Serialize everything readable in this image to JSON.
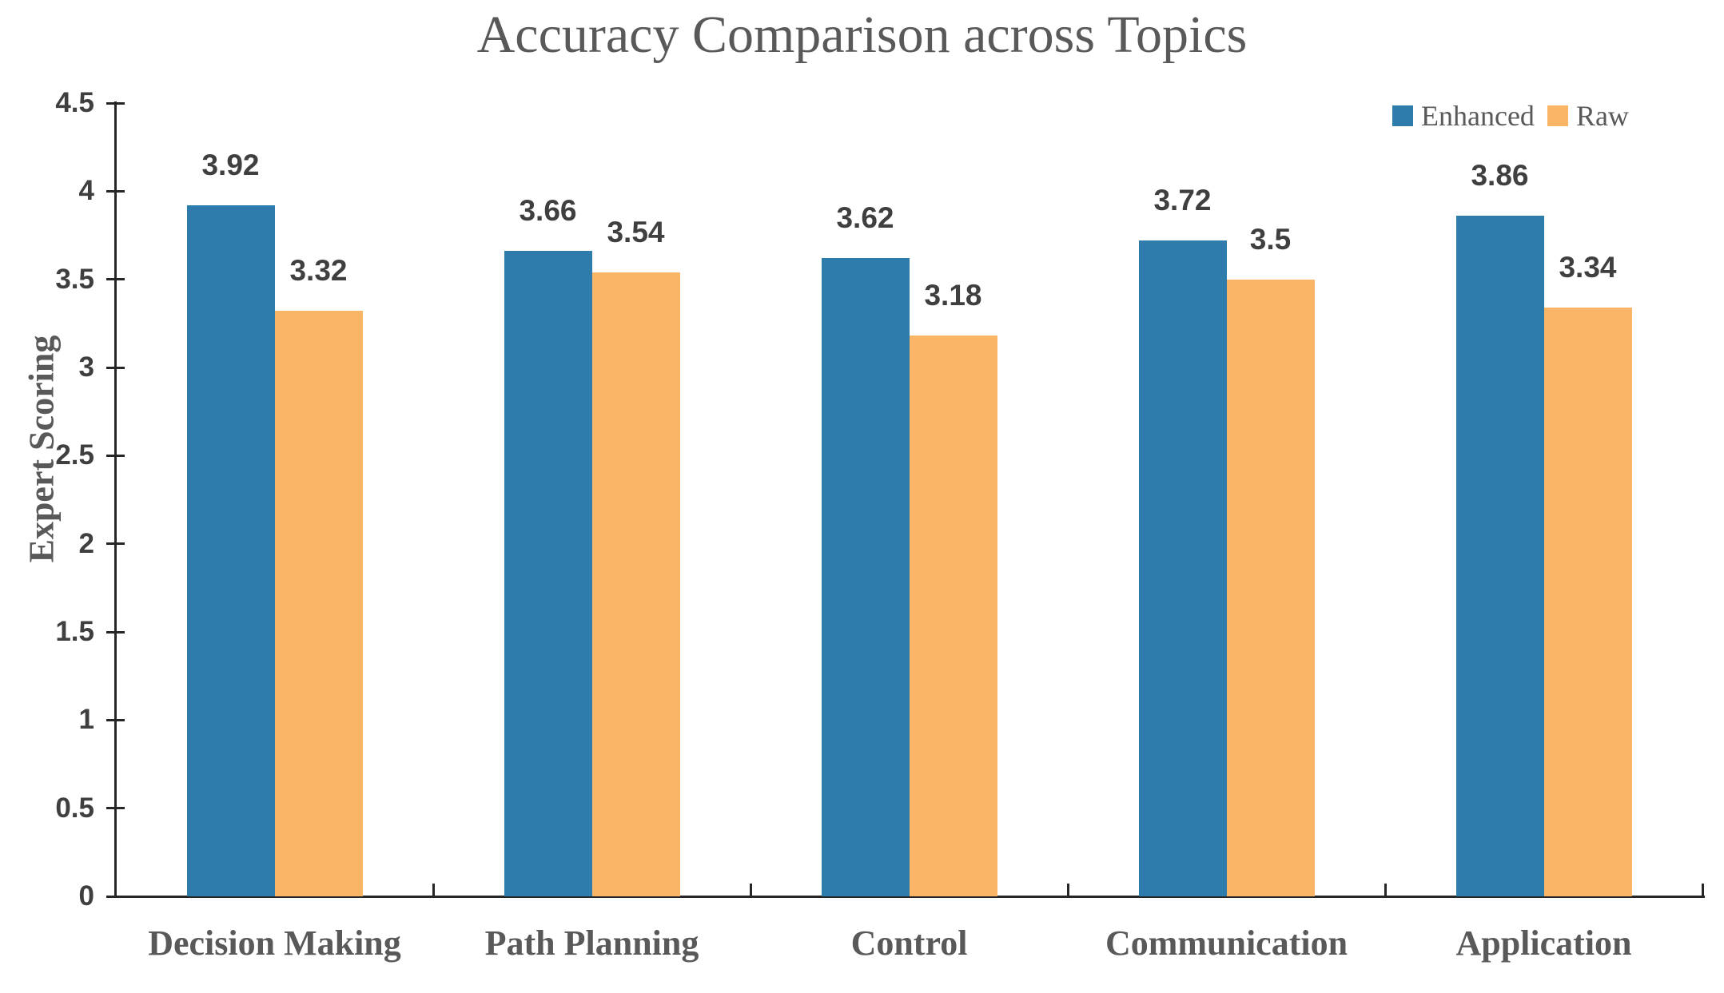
{
  "chart_data": {
    "type": "bar",
    "title": "Accuracy Comparison across Topics",
    "ylabel": "Expert Scoring",
    "xlabel": "",
    "categories": [
      "Decision Making",
      "Path Planning",
      "Control",
      "Communication",
      "Application"
    ],
    "series": [
      {
        "name": "Enhanced",
        "color": "#2D7CAC",
        "values": [
          3.92,
          3.66,
          3.62,
          3.72,
          3.86
        ]
      },
      {
        "name": "Raw",
        "color": "#FBB567",
        "values": [
          3.32,
          3.54,
          3.18,
          3.5,
          3.34
        ]
      }
    ],
    "ylim": [
      0,
      4.5
    ],
    "yticks": [
      0,
      0.5,
      1,
      1.5,
      2,
      2.5,
      3,
      3.5,
      4,
      4.5
    ],
    "legend": {
      "position": "top-right",
      "labels": [
        "Enhanced",
        "Raw"
      ]
    },
    "grid": false,
    "value_labels": true
  },
  "styles": {
    "axis_color": "#262626",
    "number_label_color": "#3F3F3F",
    "text_color": "#595959",
    "background": "#FFFFFF"
  }
}
